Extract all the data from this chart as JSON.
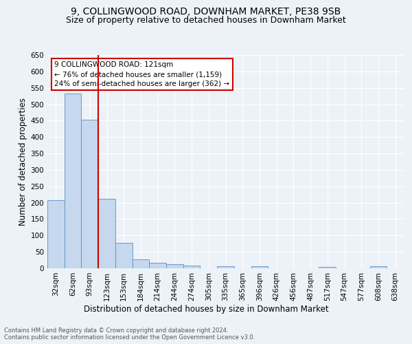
{
  "title1": "9, COLLINGWOOD ROAD, DOWNHAM MARKET, PE38 9SB",
  "title2": "Size of property relative to detached houses in Downham Market",
  "xlabel": "Distribution of detached houses by size in Downham Market",
  "ylabel": "Number of detached properties",
  "categories": [
    "32sqm",
    "62sqm",
    "93sqm",
    "123sqm",
    "153sqm",
    "184sqm",
    "214sqm",
    "244sqm",
    "274sqm",
    "305sqm",
    "335sqm",
    "365sqm",
    "396sqm",
    "426sqm",
    "456sqm",
    "487sqm",
    "517sqm",
    "547sqm",
    "577sqm",
    "608sqm",
    "638sqm"
  ],
  "values": [
    207,
    533,
    453,
    212,
    77,
    27,
    16,
    13,
    8,
    0,
    7,
    0,
    7,
    0,
    0,
    0,
    5,
    0,
    0,
    6,
    0
  ],
  "bar_color": "#c5d8ed",
  "bar_edge_color": "#5a8fc0",
  "vline_x": 2.5,
  "vline_color": "#cc0000",
  "annotation_text": "9 COLLINGWOOD ROAD: 121sqm\n← 76% of detached houses are smaller (1,159)\n24% of semi-detached houses are larger (362) →",
  "annotation_box_color": "#ffffff",
  "annotation_box_edge": "#cc0000",
  "ylim": [
    0,
    650
  ],
  "yticks": [
    0,
    50,
    100,
    150,
    200,
    250,
    300,
    350,
    400,
    450,
    500,
    550,
    600,
    650
  ],
  "footer": "Contains HM Land Registry data © Crown copyright and database right 2024.\nContains public sector information licensed under the Open Government Licence v3.0.",
  "bg_color": "#edf2f8",
  "plot_bg_color": "#edf2f8",
  "grid_color": "#ffffff",
  "title1_fontsize": 10,
  "title2_fontsize": 9,
  "axis_fontsize": 8.5,
  "tick_fontsize": 7.5,
  "footer_fontsize": 6,
  "annot_fontsize": 7.5
}
